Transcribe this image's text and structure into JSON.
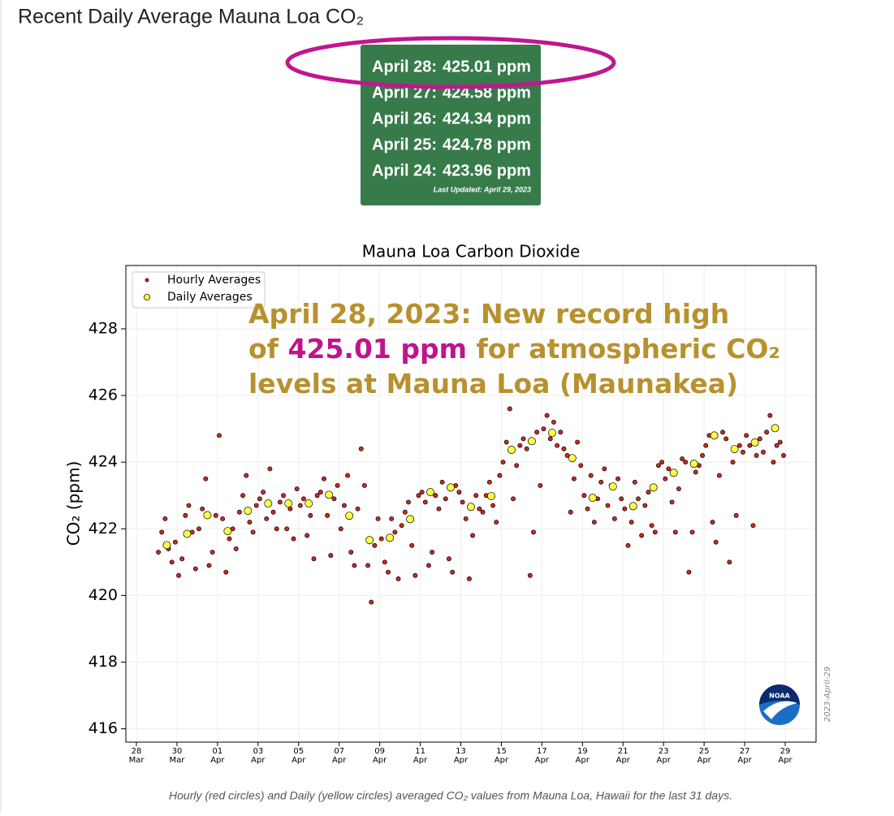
{
  "header": {
    "title": "Recent Daily Average Mauna Loa CO₂"
  },
  "table": {
    "rows": [
      {
        "date": "April 28:",
        "value": "425.01 ppm"
      },
      {
        "date": "April 27:",
        "value": "424.58 ppm"
      },
      {
        "date": "April 26:",
        "value": "424.34 ppm"
      },
      {
        "date": "April 25:",
        "value": "424.78 ppm"
      },
      {
        "date": "April 24:",
        "value": "423.96 ppm"
      }
    ],
    "updated": "Last Updated: April 29, 2023"
  },
  "chart_data": {
    "type": "scatter",
    "title": "Mauna Loa Carbon Dioxide",
    "ylabel": "CO₂ (ppm)",
    "legend": "upper left",
    "grid": true,
    "xlim": [
      "Mar 27 11:30",
      "Apr 30 12:30"
    ],
    "xticks": [
      {
        "value": "Mar 28",
        "label": "28 Mar"
      },
      {
        "value": "Mar 30",
        "label": "30 Mar"
      },
      {
        "value": "Apr 01",
        "label": "01 Apr"
      },
      {
        "value": "Apr 03",
        "label": "03 Apr"
      },
      {
        "value": "Apr 05",
        "label": "05 Apr"
      },
      {
        "value": "Apr 07",
        "label": "07 Apr"
      },
      {
        "value": "Apr 09",
        "label": "09 Apr"
      },
      {
        "value": "Apr 11",
        "label": "11 Apr"
      },
      {
        "value": "Apr 13",
        "label": "13 Apr"
      },
      {
        "value": "Apr 15",
        "label": "15 Apr"
      },
      {
        "value": "Apr 17",
        "label": "17 Apr"
      },
      {
        "value": "Apr 19",
        "label": "19 Apr"
      },
      {
        "value": "Apr 21",
        "label": "21 Apr"
      },
      {
        "value": "Apr 23",
        "label": "23 Apr"
      },
      {
        "value": "Apr 25",
        "label": "25 Apr"
      },
      {
        "value": "Apr 27",
        "label": "27 Apr"
      },
      {
        "value": "Apr 29",
        "label": "29 Apr"
      }
    ],
    "ylim": [
      415.6,
      429.9
    ],
    "yticks": [
      416,
      418,
      420,
      422,
      424,
      426,
      428
    ],
    "series": [
      {
        "name": "Hourly Averages",
        "color": "#cc2a1f",
        "radius": 2.6,
        "x": [
          "Mar 29 02:00",
          "Mar 29 06:00",
          "Mar 29 10:00",
          "Mar 29 14:00",
          "Mar 29 18:00",
          "Mar 29 22:00",
          "Mar 30 02:00",
          "Mar 30 06:00",
          "Mar 30 10:00",
          "Mar 30 14:00",
          "Mar 30 18:00",
          "Mar 30 22:00",
          "Mar 31 02:00",
          "Mar 31 06:00",
          "Mar 31 10:00",
          "Mar 31 14:00",
          "Mar 31 18:00",
          "Mar 31 22:00",
          "Apr 01 02:00",
          "Apr 01 06:00",
          "Apr 01 10:00",
          "Apr 01 14:00",
          "Apr 01 18:00",
          "Apr 01 22:00",
          "Apr 02 02:00",
          "Apr 02 06:00",
          "Apr 02 10:00",
          "Apr 02 14:00",
          "Apr 02 18:00",
          "Apr 02 22:00",
          "Apr 03 02:00",
          "Apr 03 06:00",
          "Apr 03 10:00",
          "Apr 03 14:00",
          "Apr 03 18:00",
          "Apr 03 22:00",
          "Apr 04 02:00",
          "Apr 04 06:00",
          "Apr 04 10:00",
          "Apr 04 14:00",
          "Apr 04 18:00",
          "Apr 04 22:00",
          "Apr 05 02:00",
          "Apr 05 06:00",
          "Apr 05 10:00",
          "Apr 05 14:00",
          "Apr 05 18:00",
          "Apr 05 22:00",
          "Apr 06 02:00",
          "Apr 06 06:00",
          "Apr 06 10:00",
          "Apr 06 14:00",
          "Apr 06 18:00",
          "Apr 06 22:00",
          "Apr 07 02:00",
          "Apr 07 06:00",
          "Apr 07 10:00",
          "Apr 07 14:00",
          "Apr 07 18:00",
          "Apr 07 22:00",
          "Apr 08 02:00",
          "Apr 08 06:00",
          "Apr 08 10:00",
          "Apr 08 14:00",
          "Apr 08 18:00",
          "Apr 08 22:00",
          "Apr 09 02:00",
          "Apr 09 06:00",
          "Apr 09 10:00",
          "Apr 09 14:00",
          "Apr 09 18:00",
          "Apr 09 22:00",
          "Apr 10 02:00",
          "Apr 10 06:00",
          "Apr 10 10:00",
          "Apr 10 14:00",
          "Apr 10 18:00",
          "Apr 10 22:00",
          "Apr 11 02:00",
          "Apr 11 06:00",
          "Apr 11 10:00",
          "Apr 11 14:00",
          "Apr 11 18:00",
          "Apr 11 22:00",
          "Apr 12 02:00",
          "Apr 12 06:00",
          "Apr 12 10:00",
          "Apr 12 14:00",
          "Apr 12 18:00",
          "Apr 12 22:00",
          "Apr 13 02:00",
          "Apr 13 06:00",
          "Apr 13 10:00",
          "Apr 13 14:00",
          "Apr 13 18:00",
          "Apr 13 22:00",
          "Apr 14 02:00",
          "Apr 14 06:00",
          "Apr 14 10:00",
          "Apr 14 14:00",
          "Apr 14 18:00",
          "Apr 14 22:00",
          "Apr 15 02:00",
          "Apr 15 06:00",
          "Apr 15 10:00",
          "Apr 15 14:00",
          "Apr 15 18:00",
          "Apr 15 22:00",
          "Apr 16 02:00",
          "Apr 16 06:00",
          "Apr 16 10:00",
          "Apr 16 14:00",
          "Apr 16 18:00",
          "Apr 16 22:00",
          "Apr 17 02:00",
          "Apr 17 06:00",
          "Apr 17 10:00",
          "Apr 17 14:00",
          "Apr 17 18:00",
          "Apr 17 22:00",
          "Apr 18 02:00",
          "Apr 18 06:00",
          "Apr 18 10:00",
          "Apr 18 14:00",
          "Apr 18 18:00",
          "Apr 18 22:00",
          "Apr 19 02:00",
          "Apr 19 06:00",
          "Apr 19 10:00",
          "Apr 19 14:00",
          "Apr 19 18:00",
          "Apr 19 22:00",
          "Apr 20 02:00",
          "Apr 20 06:00",
          "Apr 20 10:00",
          "Apr 20 14:00",
          "Apr 20 18:00",
          "Apr 20 22:00",
          "Apr 21 02:00",
          "Apr 21 06:00",
          "Apr 21 10:00",
          "Apr 21 14:00",
          "Apr 21 18:00",
          "Apr 21 22:00",
          "Apr 22 02:00",
          "Apr 22 06:00",
          "Apr 22 10:00",
          "Apr 22 14:00",
          "Apr 22 18:00",
          "Apr 22 22:00",
          "Apr 23 02:00",
          "Apr 23 06:00",
          "Apr 23 10:00",
          "Apr 23 14:00",
          "Apr 23 18:00",
          "Apr 23 22:00",
          "Apr 24 02:00",
          "Apr 24 06:00",
          "Apr 24 10:00",
          "Apr 24 14:00",
          "Apr 24 18:00",
          "Apr 24 22:00",
          "Apr 25 02:00",
          "Apr 25 06:00",
          "Apr 25 10:00",
          "Apr 25 14:00",
          "Apr 25 18:00",
          "Apr 25 22:00",
          "Apr 26 02:00",
          "Apr 26 06:00",
          "Apr 26 10:00",
          "Apr 26 14:00",
          "Apr 26 18:00",
          "Apr 26 22:00",
          "Apr 27 02:00",
          "Apr 27 06:00",
          "Apr 27 10:00",
          "Apr 27 14:00",
          "Apr 27 18:00",
          "Apr 27 22:00",
          "Apr 28 02:00",
          "Apr 28 06:00",
          "Apr 28 10:00",
          "Apr 28 14:00",
          "Apr 28 18:00",
          "Apr 28 22:00"
        ],
        "values": [
          421.3,
          421.9,
          422.3,
          421.4,
          421.0,
          421.6,
          420.6,
          421.1,
          422.4,
          422.7,
          421.9,
          420.8,
          422.0,
          422.6,
          423.5,
          420.9,
          421.3,
          422.4,
          424.8,
          422.3,
          420.7,
          421.7,
          422.0,
          421.4,
          422.5,
          423.0,
          423.6,
          422.2,
          421.9,
          422.7,
          422.9,
          423.1,
          422.3,
          423.8,
          422.5,
          422.0,
          422.8,
          423.0,
          422.0,
          422.6,
          421.7,
          423.2,
          422.7,
          422.9,
          421.8,
          422.4,
          421.1,
          423.0,
          423.1,
          423.5,
          422.4,
          421.2,
          422.9,
          423.3,
          422.0,
          422.7,
          423.6,
          421.3,
          420.9,
          422.6,
          424.4,
          423.3,
          420.9,
          419.8,
          421.5,
          422.3,
          421.7,
          421.0,
          420.7,
          422.3,
          421.9,
          420.5,
          422.1,
          422.5,
          422.8,
          421.5,
          420.6,
          423.0,
          423.1,
          422.8,
          420.9,
          421.3,
          423.0,
          422.6,
          423.4,
          422.9,
          421.1,
          420.7,
          423.3,
          423.1,
          422.8,
          422.3,
          420.5,
          421.8,
          423.0,
          422.6,
          422.5,
          423.0,
          423.4,
          422.7,
          422.2,
          423.6,
          424.0,
          424.6,
          425.6,
          422.9,
          423.9,
          424.5,
          424.7,
          424.4,
          420.6,
          421.9,
          424.9,
          423.3,
          425.0,
          425.4,
          424.7,
          425.2,
          424.5,
          424.9,
          424.4,
          424.2,
          422.5,
          423.5,
          424.6,
          423.9,
          423.0,
          422.6,
          423.6,
          422.2,
          422.9,
          423.4,
          423.8,
          422.7,
          423.3,
          422.3,
          423.5,
          422.9,
          422.6,
          421.5,
          422.2,
          423.4,
          422.9,
          421.8,
          422.7,
          423.1,
          422.1,
          421.9,
          423.9,
          424.0,
          423.5,
          423.8,
          422.8,
          421.9,
          423.2,
          424.1,
          424.0,
          420.7,
          421.9,
          423.7,
          423.9,
          424.2,
          424.5,
          424.8,
          422.2,
          421.6,
          423.6,
          424.9,
          424.7,
          421.0,
          424.0,
          422.4,
          424.5,
          424.3,
          424.8,
          424.5,
          422.1,
          424.2,
          424.7,
          424.3,
          424.9,
          425.4,
          424.0,
          424.5,
          424.6,
          424.2
        ]
      },
      {
        "name": "Daily Averages",
        "color": "#ffff44",
        "radius": 4.6,
        "x": [
          "Mar 29 12:00",
          "Mar 30 12:00",
          "Mar 31 12:00",
          "Apr 01 12:00",
          "Apr 02 12:00",
          "Apr 03 12:00",
          "Apr 04 12:00",
          "Apr 05 12:00",
          "Apr 06 12:00",
          "Apr 07 12:00",
          "Apr 08 12:00",
          "Apr 09 12:00",
          "Apr 10 12:00",
          "Apr 11 12:00",
          "Apr 12 12:00",
          "Apr 13 12:00",
          "Apr 14 12:00",
          "Apr 15 12:00",
          "Apr 16 12:00",
          "Apr 17 12:00",
          "Apr 18 12:00",
          "Apr 19 12:00",
          "Apr 20 12:00",
          "Apr 21 12:00",
          "Apr 22 12:00",
          "Apr 23 12:00",
          "Apr 24 12:00",
          "Apr 25 12:00",
          "Apr 26 12:00",
          "Apr 27 12:00",
          "Apr 28 12:00"
        ],
        "values": [
          421.51,
          421.85,
          422.41,
          421.93,
          422.54,
          422.76,
          422.76,
          422.76,
          423.02,
          422.39,
          421.66,
          421.73,
          422.29,
          423.1,
          423.24,
          422.66,
          422.98,
          424.37,
          424.63,
          424.88,
          424.12,
          422.93,
          423.27,
          422.68,
          423.24,
          423.68,
          423.95,
          424.8,
          424.39,
          424.59,
          425.02
        ]
      }
    ],
    "annotation": {
      "color": "#b8912f",
      "highlight_color": "#c0148c",
      "lines": [
        [
          {
            "text": "April 28, 2023: New record high"
          }
        ],
        [
          {
            "text": "of "
          },
          {
            "text": "425.01 ppm",
            "highlight": true
          },
          {
            "text": " for atmospheric CO₂"
          }
        ],
        [
          {
            "text": "levels at Mauna Loa (Maunakea)"
          }
        ]
      ]
    },
    "watermark": "2023-April-29",
    "logo_text": "NOAA"
  },
  "caption": "Hourly (red circles) and Daily (yellow circles) averaged CO₂ values from Mauna Loa, Hawaii for the last 31 days."
}
